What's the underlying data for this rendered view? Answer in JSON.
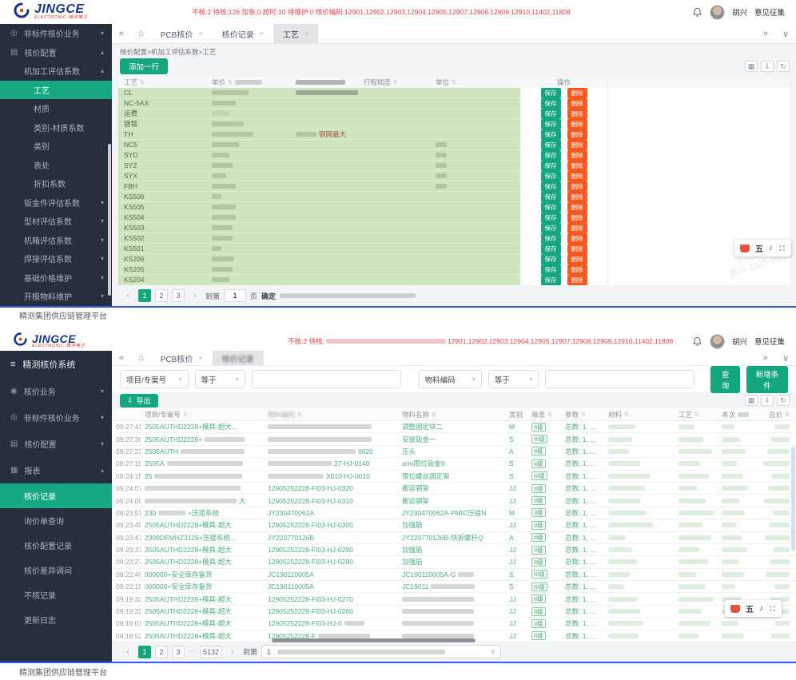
{
  "appbar": {
    "status_top": "不核:2 待核:126 加急:0 超时:10 待维护:0 核价编码:12901,12902,12903,12904,12905,12907,12908,12909,12910,11402,11808",
    "status_bottom_left": "不核:2 待核:",
    "status_bottom_codes": "12901,12902,12903,12904,12905,12907,12908,12909,12910,11402,11808",
    "logo_main": "JINGCE",
    "logo_sub": "ELECTRONIC·精测电子",
    "user_name": "胡兴",
    "feedback_label": "意见征集"
  },
  "footer": {
    "text": "精测集团供应链管理平台"
  },
  "top_panel": {
    "tabs": [
      {
        "label": "PCB核价"
      },
      {
        "label": "核价记录"
      },
      {
        "label": "工艺",
        "active": true
      }
    ],
    "breadcrumb": "核价配置>机加工评估系数>工艺",
    "toolbar": {
      "add_row_label": "添加一行"
    },
    "sidebar": [
      {
        "label": "非标件核价业务",
        "icon": "◎",
        "indent": 0,
        "arrow": "down"
      },
      {
        "label": "核价配置",
        "icon": "▤",
        "indent": 0,
        "arrow": "up"
      },
      {
        "label": "机加工评估系数",
        "indent": 1,
        "arrow": "up"
      },
      {
        "label": "工艺",
        "indent": 2,
        "active": true
      },
      {
        "label": "材质",
        "indent": 2
      },
      {
        "label": "类别-材质系数",
        "indent": 2
      },
      {
        "label": "类别",
        "indent": 2
      },
      {
        "label": "表处",
        "indent": 2
      },
      {
        "label": "折扣系数",
        "indent": 2
      },
      {
        "label": "钣金件评估系数",
        "indent": 1,
        "arrow": "down"
      },
      {
        "label": "型材评估系数",
        "indent": 1,
        "arrow": "down"
      },
      {
        "label": "机箱评估系数",
        "indent": 1,
        "arrow": "down"
      },
      {
        "label": "焊接评估系数",
        "indent": 1,
        "arrow": "down"
      },
      {
        "label": "基础价格维护",
        "indent": 1,
        "arrow": "down"
      },
      {
        "label": "开模物料维护",
        "indent": 1,
        "arrow": "down"
      }
    ],
    "table": {
      "headers": [
        "工艺",
        "单价",
        "行程精度",
        "单位",
        "操作"
      ],
      "save_label": "保存",
      "delete_label": "删除",
      "rows": [
        {
          "process": "CL",
          "wide": true
        },
        {
          "process": "NC-5AX"
        },
        {
          "process": "运费",
          "lite": true
        },
        {
          "process": "镀锡"
        },
        {
          "process": "TH",
          "note": "钢网最大"
        },
        {
          "process": "NC5",
          "unit_blur": true
        },
        {
          "process": "SYD",
          "unit_blur": true
        },
        {
          "process": "SYZ",
          "unit_blur": true
        },
        {
          "process": "SYX",
          "unit_blur": true
        },
        {
          "process": "FBH",
          "unit_blur": true
        },
        {
          "process": "KS506"
        },
        {
          "process": "KS505"
        },
        {
          "process": "KS504"
        },
        {
          "process": "KS503"
        },
        {
          "process": "KS502"
        },
        {
          "process": "KS501"
        },
        {
          "process": "KS206"
        },
        {
          "process": "KS205"
        },
        {
          "process": "KS204"
        }
      ]
    },
    "pager": {
      "pages": [
        "1",
        "2",
        "3"
      ],
      "active": "1",
      "jump_label": "到第",
      "page_value": "1",
      "unit_label": "页",
      "confirm_label": "确定"
    },
    "watermark": "胡兴 2025-10-16"
  },
  "bottom_panel": {
    "tabs": [
      {
        "label": "PCB核价"
      },
      {
        "label": "核价记录",
        "active": true,
        "blurred": true
      }
    ],
    "sidebar_title": "精测核价系统",
    "sidebar": [
      {
        "label": "核价业务",
        "icon": "◉",
        "indent": 0,
        "arrow": "down"
      },
      {
        "label": "非标件核价业务",
        "icon": "◎",
        "indent": 0,
        "arrow": "down"
      },
      {
        "label": "核价配置",
        "icon": "▤",
        "indent": 0,
        "arrow": "down"
      },
      {
        "label": "报表",
        "icon": "▦",
        "indent": 0,
        "arrow": "up"
      },
      {
        "label": "核价记录",
        "indent": 1,
        "active": true,
        "leaf": true
      },
      {
        "label": "询价单查询",
        "indent": 1,
        "leaf": true
      },
      {
        "label": "核价配置记录",
        "indent": 1,
        "leaf": true
      },
      {
        "label": "核价差异调间",
        "indent": 1,
        "leaf": true
      },
      {
        "label": "不核记录",
        "indent": 1,
        "leaf": true
      },
      {
        "label": "更新日志",
        "indent": 1,
        "leaf": true
      }
    ],
    "filters": {
      "field1": "项目/专案号",
      "op1": "等于",
      "field2": "物料编码",
      "op2": "等于",
      "search_label": "查询",
      "add_cond_label": "新增条件",
      "export_label": "导出"
    },
    "table": {
      "headers": [
        "项目/专案号",
        "物料编码",
        "物料名称",
        "类别",
        "难度",
        "参数",
        "材料",
        "工艺",
        "本次",
        "总价"
      ],
      "rows": [
        {
          "t": "09:27:41",
          "p": "2505AUTHD2228+模具-超大…",
          "c": "",
          "cm": "full",
          "n": "调整固定块二",
          "cat": "M",
          "lv": "II级",
          "pr": "总数: 1, …"
        },
        {
          "t": "09:27:30",
          "p": "2505AUTHD2228+",
          "pm": "post",
          "c": "",
          "cm": "full",
          "n": "安装钣金一",
          "cat": "S",
          "lv": "III级",
          "pr": "总数: 1, …"
        },
        {
          "t": "09:27:23",
          "p": "2505AUTH",
          "pm": "post",
          "c": "0020",
          "cm": "pre",
          "n": "压头",
          "cat": "A",
          "lv": "II级",
          "pr": "总数: 1, …"
        },
        {
          "t": "09:27:19",
          "p": "2505A",
          "pm": "post",
          "c": "27-HJ-0140",
          "cm": "pre",
          "n": "arm限位钣金9",
          "cat": "S",
          "lv": "II级",
          "pr": "总数: 1, …"
        },
        {
          "t": "09:24:15",
          "p": "25",
          "pm": "post",
          "c": "X010-HJ-0010",
          "cm": "pre",
          "n": "限位螺丝固定架",
          "cat": "S",
          "lv": "III级",
          "pr": "总数: 1, …"
        },
        {
          "t": "09:24:07",
          "p": "",
          "pm": "full",
          "c": "12905252228-FI03-HJ-0320",
          "n": "搬运钢架",
          "cat": "JJ",
          "lv": "II级",
          "pr": "总数: 1, …"
        },
        {
          "t": "09:24:00",
          "p": "大",
          "pm": "pre",
          "c": "12905252228-FI03-HJ-0310",
          "n": "搬运钢架",
          "cat": "JJ",
          "lv": "II级",
          "pr": "总数: 1, …"
        },
        {
          "t": "09:23:51",
          "p": "230|+压接系统",
          "pm": "mid",
          "c": "JY230470062A",
          "n": "JY230470062A-PMIC压接N",
          "cat": "M",
          "lv": "II级",
          "pr": "总数: 1, …"
        },
        {
          "t": "09:23:49",
          "p": "2505AUTHD2228+模具-超大",
          "c": "12905252228-FI03-HJ-0300",
          "n": "加强筋",
          "cat": "JJ",
          "lv": "II级",
          "pr": "总数: 1, …"
        },
        {
          "t": "09:23:47",
          "p": "2309DEMHZ3126+压接系统…",
          "c": "JY220770126B",
          "n": "JY220770126B-快拆螺杆Q",
          "cat": "A",
          "lv": "II级",
          "pr": "总数: 1, …"
        },
        {
          "t": "09:23:37",
          "p": "2505AUTHD2228+模具-超大",
          "c": "12905252228-FI03-HJ-0290",
          "n": "加强筋",
          "cat": "JJ",
          "lv": "II级",
          "pr": "总数: 1, …"
        },
        {
          "t": "09:23:27",
          "p": "2505AUTHD2228+模具-超大",
          "c": "12905252228-FI03-HJ-0280",
          "n": "加强筋",
          "cat": "JJ",
          "lv": "II级",
          "pr": "总数: 1, …"
        },
        {
          "t": "09:22:40",
          "p": "000000+安全库存备货",
          "c": "JC190110005A",
          "n": "JC190110005A-G",
          "nm": "post",
          "cat": "S",
          "lv": "III级",
          "pr": "总数: 1, …"
        },
        {
          "t": "09:22:19",
          "p": "000000+安全库存备货",
          "c": "JC190110005A",
          "n": "JC19011",
          "nm": "post",
          "cat": "S",
          "lv": "III级",
          "pr": "总数: 1, …"
        },
        {
          "t": "09:19:32",
          "p": "2505AUTHD2228+模具-超大",
          "c": "12905252228-FI03-HJ-0270",
          "n": "",
          "nm": "full",
          "cat": "JJ",
          "lv": "II级",
          "pr": "总数: 1, …"
        },
        {
          "t": "09:19:22",
          "p": "2505AUTHD2228+模具-超大",
          "c": "12905252228-FI03-HJ-0260",
          "n": "",
          "nm": "full",
          "cat": "JJ",
          "lv": "II级",
          "pr": "总数: 1, …"
        },
        {
          "t": "09:19:01",
          "p": "2505AUTHD2228+模具-超大",
          "c": "12905252228-FI03-HJ-0",
          "cm": "post",
          "n": "",
          "nm": "full",
          "cat": "JJ",
          "lv": "II级",
          "pr": "总数: 1, …"
        },
        {
          "t": "09:18:52",
          "p": "2505AUTHD2228+模具-超大",
          "c": "12905252228-F",
          "cm": "post",
          "n": "",
          "nm": "full",
          "cat": "JJ",
          "lv": "II级",
          "pr": "总数: 1, …"
        }
      ]
    },
    "pager": {
      "pages": [
        "1",
        "2",
        "3",
        "…",
        "5132"
      ],
      "active": "1",
      "jump_label": "到第",
      "combo_value": "1"
    },
    "float_char": "五"
  }
}
